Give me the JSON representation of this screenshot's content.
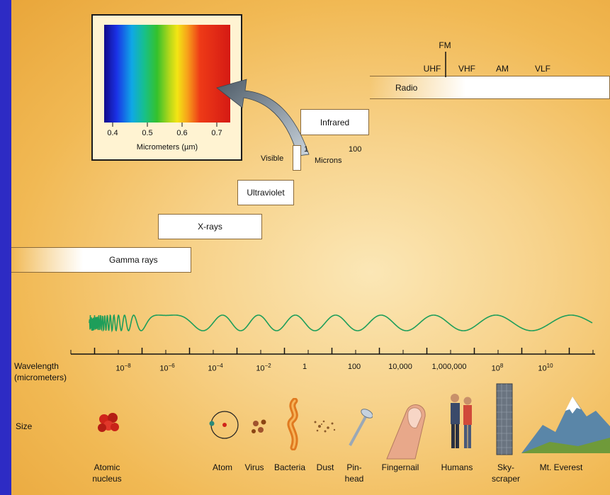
{
  "inset": {
    "axis_label": "Micrometers (µm)",
    "ticks": [
      "0.4",
      "0.5",
      "0.6",
      "0.7"
    ]
  },
  "bands": {
    "radio": "Radio",
    "infrared": "Infrared",
    "visible": "Visible",
    "microns": "Microns",
    "microns_ticks": [
      "1",
      "100"
    ],
    "ultraviolet": "Ultraviolet",
    "xrays": "X-rays",
    "gamma": "Gamma rays"
  },
  "radio_subbands": {
    "fm": "FM",
    "uhf": "UHF",
    "vhf": "VHF",
    "am": "AM",
    "vlf": "VLF"
  },
  "scale": {
    "title_line1": "Wavelength",
    "title_line2": "(micrometers)",
    "ticks": [
      {
        "base": "10",
        "exp": "−8"
      },
      {
        "base": "10",
        "exp": "−6"
      },
      {
        "base": "10",
        "exp": "−4"
      },
      {
        "base": "10",
        "exp": "−2"
      },
      {
        "base": "1",
        "exp": ""
      },
      {
        "base": "100",
        "exp": ""
      },
      {
        "base": "10,000",
        "exp": ""
      },
      {
        "base": "1,000,000",
        "exp": ""
      },
      {
        "base": "10",
        "exp": "8"
      },
      {
        "base": "10",
        "exp": "10"
      }
    ]
  },
  "size": {
    "title": "Size",
    "objects": [
      {
        "line1": "Atomic",
        "line2": "nucleus"
      },
      {
        "line1": "Atom",
        "line2": ""
      },
      {
        "line1": "Virus",
        "line2": ""
      },
      {
        "line1": "Bacteria",
        "line2": ""
      },
      {
        "line1": "Dust",
        "line2": ""
      },
      {
        "line1": "Pin-",
        "line2": "head"
      },
      {
        "line1": "Fingernail",
        "line2": ""
      },
      {
        "line1": "Humans",
        "line2": ""
      },
      {
        "line1": "Sky-",
        "line2": "scraper"
      },
      {
        "line1": "Mt. Everest",
        "line2": ""
      }
    ]
  },
  "colors": {
    "wave": "#1e9e5a",
    "background_blue": "#2d2bc4",
    "panel": "#f4c46a"
  }
}
